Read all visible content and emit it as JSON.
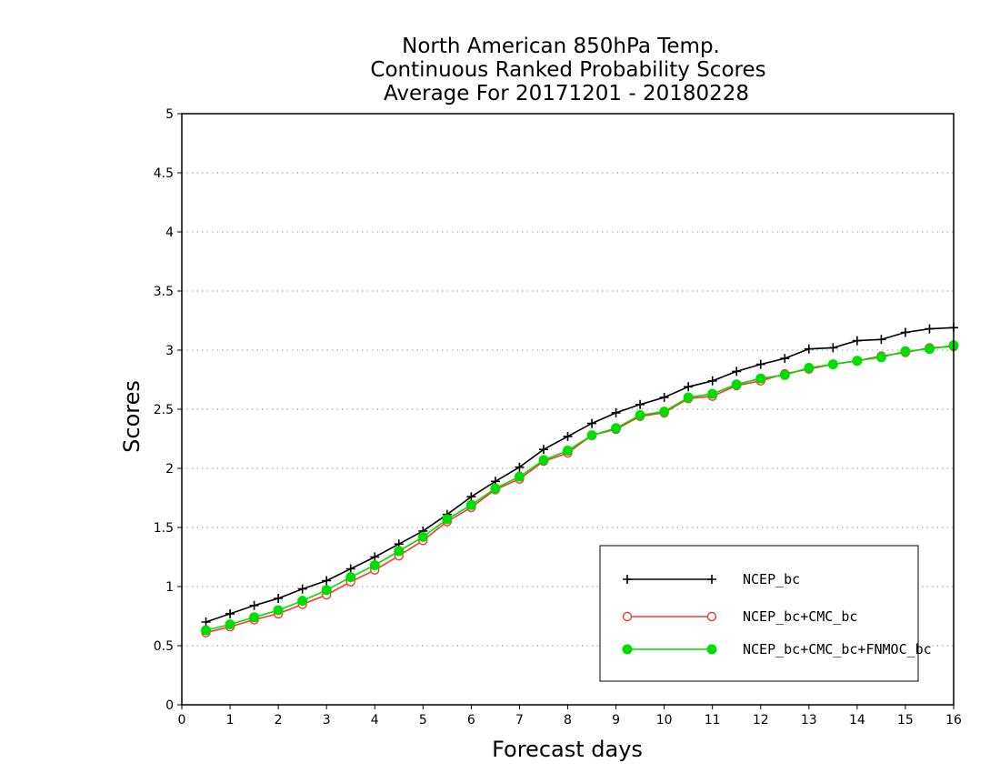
{
  "chart_data": {
    "type": "line",
    "title_lines": [
      "North American 850hPa Temp.",
      "Continuous Ranked Probability Scores",
      "Average For 20171201 - 20180228"
    ],
    "xlabel": "Forecast days",
    "ylabel": "Scores",
    "xlim": [
      0,
      16
    ],
    "ylim": [
      0,
      5
    ],
    "xticks": [
      0,
      1,
      2,
      3,
      4,
      5,
      6,
      7,
      8,
      9,
      10,
      11,
      12,
      13,
      14,
      15,
      16
    ],
    "yticks": [
      0,
      0.5,
      1,
      1.5,
      2,
      2.5,
      3,
      3.5,
      4,
      4.5,
      5
    ],
    "ytick_labels": [
      "0",
      "0.5",
      "1",
      "1.5",
      "2",
      "2.5",
      "3",
      "3.5",
      "4",
      "4.5",
      "5"
    ],
    "grid": "horizontal dotted",
    "legend_position": "bottom-right",
    "x": [
      0.5,
      1,
      1.5,
      2,
      2.5,
      3,
      3.5,
      4,
      4.5,
      5,
      5.5,
      6,
      6.5,
      7,
      7.5,
      8,
      8.5,
      9,
      9.5,
      10,
      10.5,
      11,
      11.5,
      12,
      12.5,
      13,
      13.5,
      14,
      14.5,
      15,
      15.5,
      16
    ],
    "series": [
      {
        "name": "NCEP_bc",
        "color": "#000000",
        "marker": "plus",
        "values": [
          0.7,
          0.77,
          0.84,
          0.9,
          0.98,
          1.05,
          1.15,
          1.25,
          1.36,
          1.47,
          1.61,
          1.76,
          1.89,
          2.01,
          2.16,
          2.27,
          2.38,
          2.47,
          2.54,
          2.6,
          2.69,
          2.74,
          2.82,
          2.88,
          2.93,
          3.01,
          3.02,
          3.08,
          3.09,
          3.15,
          3.18,
          3.19
        ]
      },
      {
        "name": "NCEP_bc+CMC_bc",
        "color": "#ff3333",
        "marker": "circle-open",
        "values": [
          0.61,
          0.66,
          0.72,
          0.77,
          0.85,
          0.93,
          1.04,
          1.14,
          1.26,
          1.39,
          1.55,
          1.67,
          1.82,
          1.91,
          2.06,
          2.13,
          2.28,
          2.33,
          2.44,
          2.47,
          2.59,
          2.61,
          2.7,
          2.74,
          2.8,
          2.84,
          2.88,
          2.91,
          2.95,
          2.98,
          3.02,
          3.03
        ]
      },
      {
        "name": "NCEP_bc+CMC_bc+FNMOC_bc",
        "color": "#00dd00",
        "marker": "circle-filled",
        "values": [
          0.63,
          0.68,
          0.74,
          0.8,
          0.88,
          0.97,
          1.08,
          1.18,
          1.3,
          1.42,
          1.57,
          1.69,
          1.83,
          1.93,
          2.07,
          2.15,
          2.28,
          2.34,
          2.45,
          2.48,
          2.6,
          2.63,
          2.71,
          2.76,
          2.79,
          2.85,
          2.88,
          2.91,
          2.94,
          2.99,
          3.01,
          3.04
        ]
      }
    ]
  }
}
